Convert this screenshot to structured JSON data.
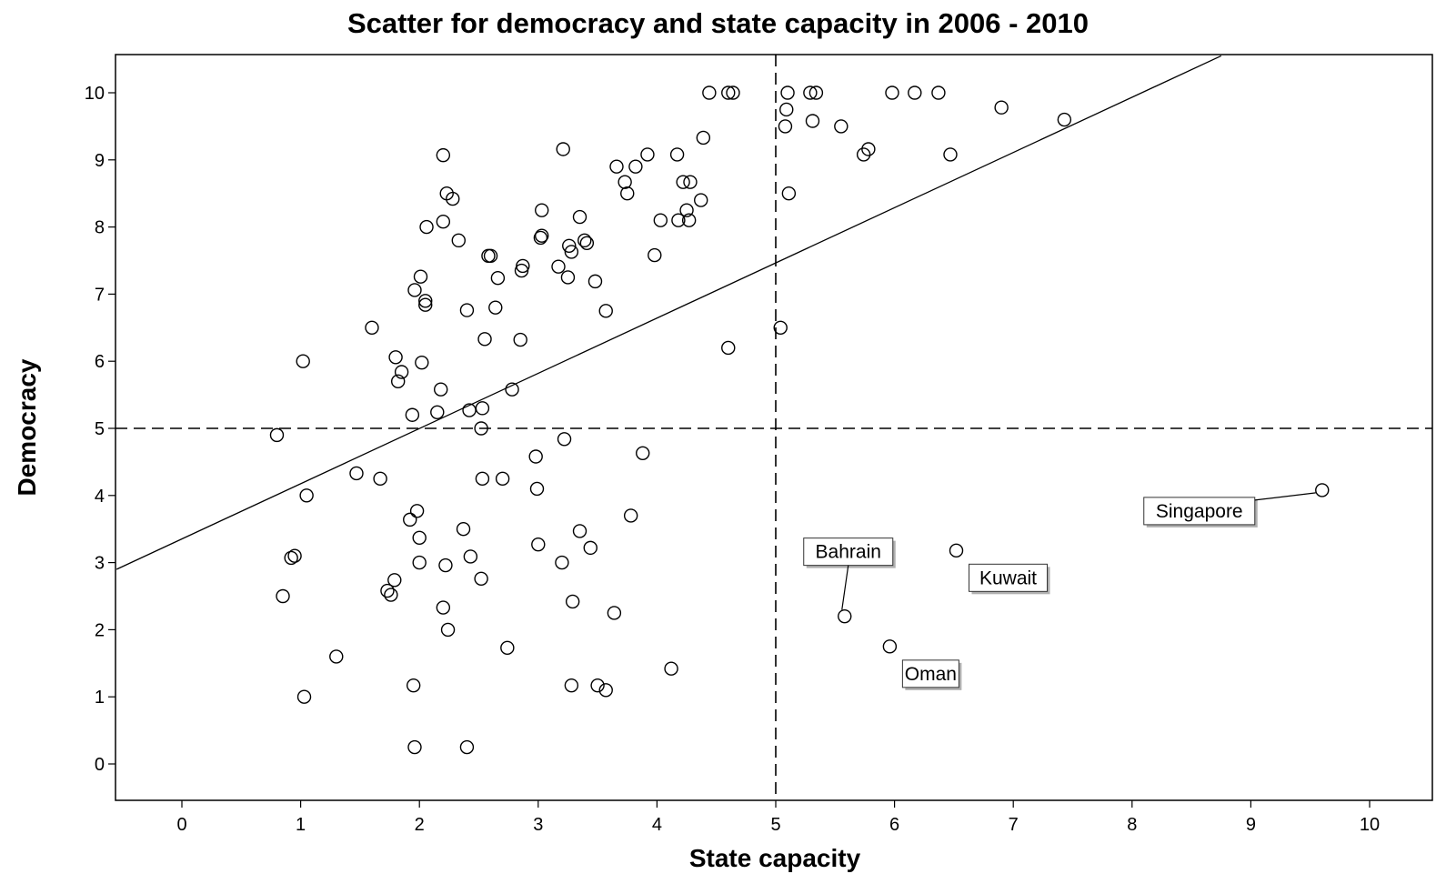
{
  "chart_data": {
    "type": "scatter",
    "title": "Scatter for democracy and state capacity in 2006 - 2010",
    "xlabel": "State capacity",
    "ylabel": "Democracy",
    "xlim": [
      -0.55,
      10.55
    ],
    "ylim": [
      -0.55,
      10.55
    ],
    "x_ticks": [
      "0",
      "1",
      "2",
      "3",
      "4",
      "5",
      "6",
      "7",
      "8",
      "9",
      "10"
    ],
    "y_ticks": [
      "0",
      "1",
      "2",
      "3",
      "4",
      "5",
      "6",
      "7",
      "8",
      "9",
      "10"
    ],
    "grid": false,
    "reference_lines": [
      {
        "orientation": "vertical",
        "value": 5,
        "style": "dashed"
      },
      {
        "orientation": "horizontal",
        "value": 5,
        "style": "dashed"
      }
    ],
    "fit_line": {
      "style": "solid",
      "points": [
        [
          -0.55,
          2.9
        ],
        [
          8.75,
          10.55
        ]
      ]
    },
    "points": [
      [
        0.8,
        4.9
      ],
      [
        0.85,
        2.5
      ],
      [
        0.92,
        3.07
      ],
      [
        0.95,
        3.1
      ],
      [
        1.02,
        6.0
      ],
      [
        1.05,
        4.0
      ],
      [
        1.03,
        1.0
      ],
      [
        1.3,
        1.6
      ],
      [
        1.47,
        4.33
      ],
      [
        1.6,
        6.5
      ],
      [
        1.67,
        4.25
      ],
      [
        1.73,
        2.58
      ],
      [
        1.76,
        2.52
      ],
      [
        1.79,
        2.74
      ],
      [
        1.8,
        6.06
      ],
      [
        1.82,
        5.7
      ],
      [
        1.85,
        5.84
      ],
      [
        1.92,
        3.64
      ],
      [
        1.94,
        5.2
      ],
      [
        1.95,
        1.17
      ],
      [
        1.96,
        7.06
      ],
      [
        1.96,
        0.25
      ],
      [
        1.98,
        3.77
      ],
      [
        2.0,
        3.37
      ],
      [
        2.0,
        3.0
      ],
      [
        2.01,
        7.26
      ],
      [
        2.02,
        5.98
      ],
      [
        2.05,
        6.9
      ],
      [
        2.05,
        6.84
      ],
      [
        2.06,
        8.0
      ],
      [
        2.15,
        5.24
      ],
      [
        2.18,
        5.58
      ],
      [
        2.2,
        9.07
      ],
      [
        2.2,
        8.08
      ],
      [
        2.2,
        2.33
      ],
      [
        2.22,
        2.96
      ],
      [
        2.23,
        8.5
      ],
      [
        2.24,
        2.0
      ],
      [
        2.28,
        8.42
      ],
      [
        2.33,
        7.8
      ],
      [
        2.37,
        3.5
      ],
      [
        2.4,
        6.76
      ],
      [
        2.4,
        0.25
      ],
      [
        2.42,
        5.27
      ],
      [
        2.43,
        3.09
      ],
      [
        2.52,
        5.0
      ],
      [
        2.52,
        2.76
      ],
      [
        2.53,
        5.3
      ],
      [
        2.53,
        4.25
      ],
      [
        2.55,
        6.33
      ],
      [
        2.58,
        7.57
      ],
      [
        2.6,
        7.57
      ],
      [
        2.64,
        6.8
      ],
      [
        2.66,
        7.24
      ],
      [
        2.7,
        4.25
      ],
      [
        2.74,
        1.73
      ],
      [
        2.78,
        5.58
      ],
      [
        2.85,
        6.32
      ],
      [
        2.86,
        7.35
      ],
      [
        2.87,
        7.42
      ],
      [
        2.98,
        4.58
      ],
      [
        2.99,
        4.1
      ],
      [
        3.0,
        3.27
      ],
      [
        3.02,
        7.84
      ],
      [
        3.03,
        7.87
      ],
      [
        3.03,
        8.25
      ],
      [
        3.17,
        7.41
      ],
      [
        3.2,
        3.0
      ],
      [
        3.21,
        9.16
      ],
      [
        3.22,
        4.84
      ],
      [
        3.25,
        7.25
      ],
      [
        3.26,
        7.72
      ],
      [
        3.28,
        7.63
      ],
      [
        3.28,
        1.17
      ],
      [
        3.29,
        2.42
      ],
      [
        3.35,
        8.15
      ],
      [
        3.35,
        3.47
      ],
      [
        3.39,
        7.8
      ],
      [
        3.41,
        7.76
      ],
      [
        3.44,
        3.22
      ],
      [
        3.48,
        7.19
      ],
      [
        3.5,
        1.17
      ],
      [
        3.57,
        6.75
      ],
      [
        3.57,
        1.1
      ],
      [
        3.64,
        2.25
      ],
      [
        3.66,
        8.9
      ],
      [
        3.73,
        8.67
      ],
      [
        3.75,
        8.5
      ],
      [
        3.78,
        3.7
      ],
      [
        3.82,
        8.9
      ],
      [
        3.88,
        4.63
      ],
      [
        3.92,
        9.08
      ],
      [
        3.98,
        7.58
      ],
      [
        4.03,
        8.1
      ],
      [
        4.12,
        1.42
      ],
      [
        4.17,
        9.08
      ],
      [
        4.18,
        8.1
      ],
      [
        4.22,
        8.67
      ],
      [
        4.25,
        8.25
      ],
      [
        4.27,
        8.1
      ],
      [
        4.28,
        8.67
      ],
      [
        4.37,
        8.4
      ],
      [
        4.39,
        9.33
      ],
      [
        4.44,
        10.0
      ],
      [
        4.6,
        6.2
      ],
      [
        4.6,
        10.0
      ],
      [
        4.64,
        10.0
      ],
      [
        5.04,
        6.5
      ],
      [
        5.08,
        9.5
      ],
      [
        5.09,
        9.75
      ],
      [
        5.1,
        10.0
      ],
      [
        5.11,
        8.5
      ],
      [
        5.29,
        10.0
      ],
      [
        5.31,
        9.58
      ],
      [
        5.34,
        10.0
      ],
      [
        5.55,
        9.5
      ],
      [
        5.74,
        9.08
      ],
      [
        5.78,
        9.16
      ],
      [
        5.98,
        10.0
      ],
      [
        6.17,
        10.0
      ],
      [
        6.37,
        10.0
      ],
      [
        6.47,
        9.08
      ],
      [
        6.9,
        9.78
      ],
      [
        7.43,
        9.6
      ]
    ],
    "labeled_points": [
      {
        "label": "Bahrain",
        "x": 5.58,
        "y": 2.2
      },
      {
        "label": "Kuwait",
        "x": 6.52,
        "y": 3.18
      },
      {
        "label": "Oman",
        "x": 5.96,
        "y": 1.75
      },
      {
        "label": "Singapore",
        "x": 9.6,
        "y": 4.08
      }
    ]
  }
}
